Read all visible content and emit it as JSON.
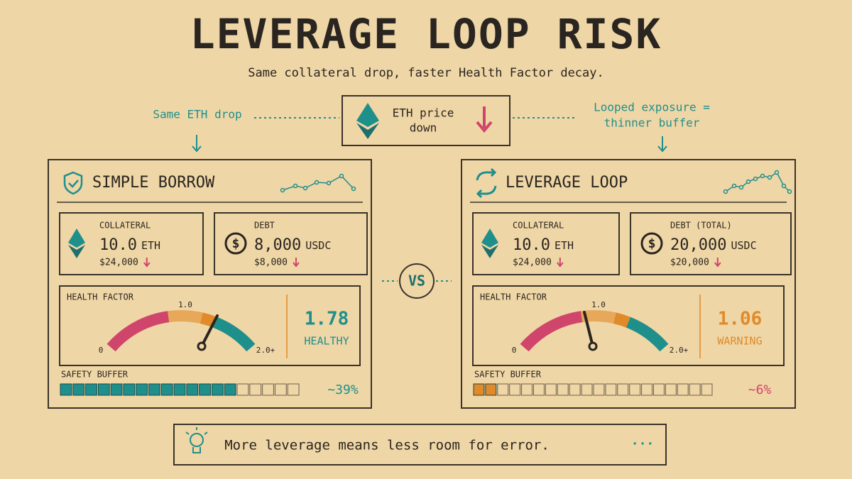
{
  "header": {
    "title": "LEVERAGE LOOP RISK",
    "subtitle": "Same collateral drop, faster Health Factor decay."
  },
  "center": {
    "lines": [
      "ETH price",
      "down"
    ]
  },
  "left_note": "Same ETH drop",
  "right_note": [
    "Looped exposure =",
    "thinner buffer"
  ],
  "vs": "VS",
  "panels": [
    {
      "title": "SIMPLE BORROW",
      "collateral": {
        "label": "COLLATERAL",
        "amount": "10.0",
        "unit": "ETH",
        "usd": "$24,000"
      },
      "debt": {
        "label": "DEBT",
        "amount": "8,000",
        "unit": "USDC",
        "usd": "$8,000"
      },
      "health": {
        "label": "HEALTH FACTOR",
        "min": "0",
        "mid": "1.0",
        "max": "2.0+",
        "value": "1.78",
        "status": "HEALTHY"
      },
      "buffer": {
        "label": "SAFETY BUFFER",
        "value": "~39%"
      }
    },
    {
      "title": "LEVERAGE LOOP",
      "collateral": {
        "label": "COLLATERAL",
        "amount": "10.0",
        "unit": "ETH",
        "usd": "$24,000"
      },
      "debt": {
        "label": "DEBT (TOTAL)",
        "amount": "20,000",
        "unit": "USDC",
        "usd": "$20,000"
      },
      "health": {
        "label": "HEALTH FACTOR",
        "min": "0",
        "mid": "1.0",
        "max": "2.0+",
        "value": "1.06",
        "status": "WARNING"
      },
      "buffer": {
        "label": "SAFETY BUFFER",
        "value": "~6%"
      }
    }
  ],
  "footer": "More leverage means less room for error."
}
